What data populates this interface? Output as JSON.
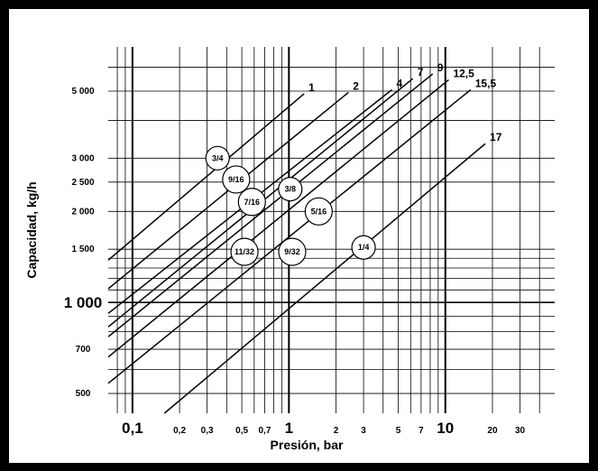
{
  "colors": {
    "frame": "#000000",
    "background": "#ffffff",
    "ink": "#000000"
  },
  "chart_data": {
    "type": "line",
    "title": "",
    "xlabel": "Presión, bar",
    "ylabel": "Capacidad, kg/h",
    "xscale": "log",
    "yscale": "log",
    "xlim": [
      0.07,
      50
    ],
    "ylim": [
      430,
      7000
    ],
    "grid": true,
    "legend": "none",
    "x_ticks": [
      {
        "value": 0.1,
        "label": "0,1",
        "major": true
      },
      {
        "value": 0.2,
        "label": "0,2",
        "major": false
      },
      {
        "value": 0.3,
        "label": "0,3",
        "major": false
      },
      {
        "value": 0.5,
        "label": "0,5",
        "major": false
      },
      {
        "value": 0.7,
        "label": "0,7",
        "major": false
      },
      {
        "value": 1,
        "label": "1",
        "major": true
      },
      {
        "value": 2,
        "label": "2",
        "major": false
      },
      {
        "value": 3,
        "label": "3",
        "major": false
      },
      {
        "value": 5,
        "label": "5",
        "major": false
      },
      {
        "value": 7,
        "label": "7",
        "major": false
      },
      {
        "value": 10,
        "label": "10",
        "major": true
      },
      {
        "value": 20,
        "label": "20",
        "major": false
      },
      {
        "value": 30,
        "label": "30",
        "major": false
      }
    ],
    "x_grid": [
      0.08,
      0.09,
      0.1,
      0.2,
      0.3,
      0.4,
      0.5,
      0.6,
      0.7,
      0.8,
      0.9,
      1,
      2,
      3,
      4,
      5,
      6,
      7,
      8,
      9,
      10,
      20,
      30,
      40
    ],
    "y_ticks": [
      {
        "value": 500,
        "label": "500",
        "major": false
      },
      {
        "value": 700,
        "label": "700",
        "major": false
      },
      {
        "value": 1000,
        "label": "1 000",
        "major": true
      },
      {
        "value": 1500,
        "label": "1 500",
        "major": false
      },
      {
        "value": 2000,
        "label": "2 000",
        "major": false
      },
      {
        "value": 2500,
        "label": "2 500",
        "major": false
      },
      {
        "value": 3000,
        "label": "3 000",
        "major": false
      },
      {
        "value": 5000,
        "label": "5 000",
        "major": false
      }
    ],
    "y_grid": [
      500,
      600,
      700,
      800,
      900,
      1000,
      1100,
      1200,
      1300,
      1400,
      1500,
      2000,
      2500,
      3000,
      4000,
      5000,
      6000
    ],
    "series": [
      {
        "name": "1",
        "x": [
          0.07,
          1.25
        ],
        "y": [
          1380,
          4900
        ]
      },
      {
        "name": "2",
        "x": [
          0.07,
          2.4
        ],
        "y": [
          1110,
          4950
        ]
      },
      {
        "name": "4",
        "x": [
          0.07,
          4.55
        ],
        "y": [
          920,
          5050
        ]
      },
      {
        "name": "7",
        "x": [
          0.07,
          6.2
        ],
        "y": [
          830,
          5500
        ]
      },
      {
        "name": "9",
        "x": [
          0.07,
          8.3
        ],
        "y": [
          770,
          5700
        ]
      },
      {
        "name": "12,5",
        "x": [
          0.07,
          10.5
        ],
        "y": [
          660,
          5450
        ]
      },
      {
        "name": "15,5",
        "x": [
          0.07,
          14.5
        ],
        "y": [
          540,
          5050
        ]
      },
      {
        "name": "17",
        "x": [
          0.16,
          18.0
        ],
        "y": [
          430,
          3350
        ]
      }
    ],
    "annotations": [
      {
        "text": "3/4",
        "x": 0.35,
        "y": 3000
      },
      {
        "text": "9/16",
        "x": 0.46,
        "y": 2550
      },
      {
        "text": "7/16",
        "x": 0.58,
        "y": 2150
      },
      {
        "text": "3/8",
        "x": 1.02,
        "y": 2370
      },
      {
        "text": "5/16",
        "x": 1.55,
        "y": 2000
      },
      {
        "text": "11/32",
        "x": 0.52,
        "y": 1470
      },
      {
        "text": "9/32",
        "x": 1.05,
        "y": 1470
      },
      {
        "text": "1/4",
        "x": 3.0,
        "y": 1520
      }
    ]
  }
}
